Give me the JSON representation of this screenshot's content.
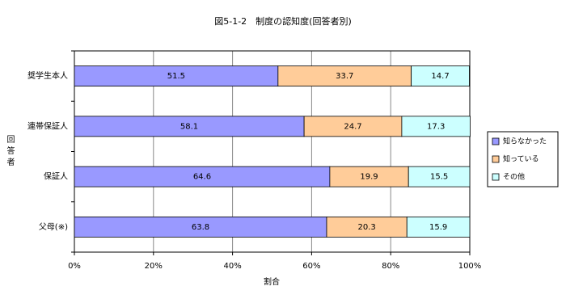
{
  "chart_data": {
    "type": "stacked-bar-horizontal",
    "title": "図5-1-2　制度の認知度(回答者別)",
    "x_label": "割合",
    "y_label": "回答者",
    "categories": [
      "奨学生本人",
      "連帯保証人",
      "保証人",
      "父母(※)"
    ],
    "series": [
      {
        "name": "知らなかった",
        "color": "#9999ff",
        "values": [
          51.5,
          58.1,
          64.6,
          63.8
        ]
      },
      {
        "name": "知っている",
        "color": "#ffcc99",
        "values": [
          33.7,
          24.7,
          19.9,
          20.3
        ]
      },
      {
        "name": "その他",
        "color": "#ccffff",
        "values": [
          14.7,
          17.3,
          15.5,
          15.9
        ]
      }
    ],
    "xlim": [
      0,
      100
    ],
    "xticks": [
      {
        "value": 0,
        "label": "0%"
      },
      {
        "value": 20,
        "label": "20%"
      },
      {
        "value": 40,
        "label": "40%"
      },
      {
        "value": 60,
        "label": "60%"
      },
      {
        "value": 80,
        "label": "80%"
      },
      {
        "value": 100,
        "label": "100%"
      }
    ],
    "grid": true,
    "legend": "right"
  }
}
